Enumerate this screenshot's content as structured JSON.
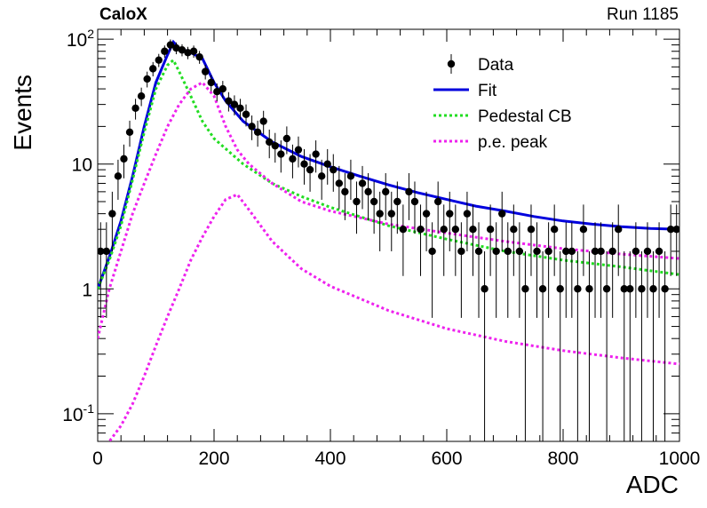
{
  "header": {
    "experiment": "CaloX",
    "run": "Run 1185"
  },
  "chart_data": {
    "type": "scatter",
    "xlabel": "ADC",
    "ylabel": "Events",
    "xlim": [
      0,
      1000
    ],
    "ylim": [
      0.06,
      120
    ],
    "yscale": "log",
    "x_ticks": [
      0,
      200,
      400,
      600,
      800,
      1000
    ],
    "y_ticks": [
      {
        "value": 0.1,
        "label": "10",
        "exp": "-1"
      },
      {
        "value": 1,
        "label": "1",
        "exp": ""
      },
      {
        "value": 10,
        "label": "10",
        "exp": ""
      },
      {
        "value": 100,
        "label": "10",
        "exp": "2"
      }
    ],
    "legend": {
      "position": "top-right",
      "entries": [
        {
          "label": "Data",
          "style": "marker",
          "color": "#000000"
        },
        {
          "label": "Fit",
          "style": "solid",
          "color": "#0000dd"
        },
        {
          "label": "Pedestal CB",
          "style": "dotted",
          "color": "#22dd22"
        },
        {
          "label": "p.e. peak",
          "style": "dotted",
          "color": "#ee22ee"
        }
      ]
    },
    "series": [
      {
        "name": "Data",
        "type": "scatter",
        "color": "#000000",
        "x": [
          5,
          15,
          25,
          35,
          45,
          55,
          65,
          75,
          85,
          95,
          105,
          115,
          125,
          135,
          145,
          155,
          165,
          175,
          185,
          195,
          205,
          215,
          225,
          235,
          245,
          255,
          265,
          275,
          285,
          295,
          305,
          315,
          325,
          335,
          345,
          355,
          365,
          375,
          385,
          395,
          405,
          415,
          425,
          435,
          445,
          455,
          465,
          475,
          485,
          495,
          505,
          515,
          525,
          535,
          545,
          555,
          565,
          575,
          585,
          595,
          605,
          615,
          625,
          635,
          645,
          655,
          665,
          675,
          685,
          695,
          705,
          715,
          725,
          735,
          745,
          755,
          765,
          775,
          785,
          795,
          805,
          815,
          825,
          835,
          845,
          855,
          865,
          875,
          885,
          895,
          905,
          915,
          925,
          935,
          945,
          955,
          965,
          975,
          985,
          995
        ],
        "y": [
          2,
          2,
          4,
          8,
          11,
          18,
          28,
          35,
          48,
          58,
          68,
          80,
          90,
          85,
          82,
          78,
          80,
          72,
          55,
          45,
          38,
          40,
          32,
          30,
          28,
          25,
          20,
          18,
          22,
          15,
          14,
          12,
          16,
          11,
          13,
          10,
          9,
          12,
          8,
          10,
          9,
          7,
          6,
          8,
          5,
          7,
          6,
          5,
          4,
          6,
          4,
          5,
          3,
          6,
          5,
          3,
          4,
          2,
          5,
          3,
          4,
          3,
          2,
          4,
          3,
          2,
          1,
          3,
          2,
          4,
          2,
          3,
          2,
          1,
          3,
          2,
          1,
          2,
          3,
          1,
          2,
          2,
          1,
          3,
          1,
          2,
          2,
          1,
          2,
          3,
          1,
          1,
          2,
          1,
          2,
          1,
          2,
          1,
          3,
          3
        ]
      },
      {
        "name": "Fit",
        "type": "line",
        "color": "#0000dd",
        "x": [
          0,
          20,
          40,
          60,
          80,
          100,
          120,
          130,
          140,
          160,
          180,
          200,
          220,
          250,
          300,
          350,
          400,
          450,
          500,
          550,
          600,
          650,
          700,
          750,
          800,
          850,
          900,
          950,
          1000
        ],
        "y": [
          1,
          1.8,
          3.5,
          8,
          20,
          45,
          75,
          95,
          85,
          78,
          70,
          45,
          32,
          22,
          15,
          11.5,
          9.5,
          8,
          6.8,
          5.9,
          5.2,
          4.6,
          4.2,
          3.8,
          3.5,
          3.3,
          3.15,
          3.05,
          3
        ]
      },
      {
        "name": "Pedestal CB",
        "type": "line",
        "color": "#22dd22",
        "x": [
          0,
          20,
          40,
          60,
          80,
          100,
          120,
          130,
          140,
          160,
          180,
          200,
          250,
          300,
          350,
          400,
          450,
          500,
          600,
          700,
          800,
          900,
          1000
        ],
        "y": [
          1,
          1.7,
          3.2,
          7.5,
          18,
          40,
          62,
          68,
          55,
          35,
          22,
          16,
          10,
          7,
          5.5,
          4.5,
          3.8,
          3.2,
          2.5,
          2.0,
          1.7,
          1.5,
          1.3
        ]
      },
      {
        "name": "p.e. peak",
        "type": "line",
        "color": "#ee22ee",
        "x": [
          0,
          20,
          40,
          60,
          80,
          100,
          120,
          140,
          160,
          180,
          200,
          220,
          240,
          260,
          300,
          350,
          400,
          500,
          600,
          700,
          800,
          900,
          1000
        ],
        "y": [
          0.4,
          1,
          2,
          4,
          7,
          12,
          20,
          30,
          40,
          45,
          35,
          20,
          13,
          10,
          7,
          5,
          4.2,
          3.3,
          2.8,
          2.4,
          2.1,
          1.9,
          1.75
        ]
      },
      {
        "name": "",
        "type": "line",
        "color": "#ee22ee",
        "x": [
          0,
          20,
          40,
          60,
          80,
          100,
          120,
          140,
          160,
          180,
          200,
          220,
          240,
          260,
          300,
          350,
          400,
          500,
          600,
          700,
          800,
          900,
          1000
        ],
        "y": [
          0.05,
          0.06,
          0.08,
          0.12,
          0.2,
          0.35,
          0.6,
          1,
          1.7,
          2.6,
          3.8,
          5.2,
          5.7,
          4.3,
          2.4,
          1.45,
          1.05,
          0.67,
          0.48,
          0.38,
          0.32,
          0.28,
          0.25
        ]
      }
    ]
  }
}
